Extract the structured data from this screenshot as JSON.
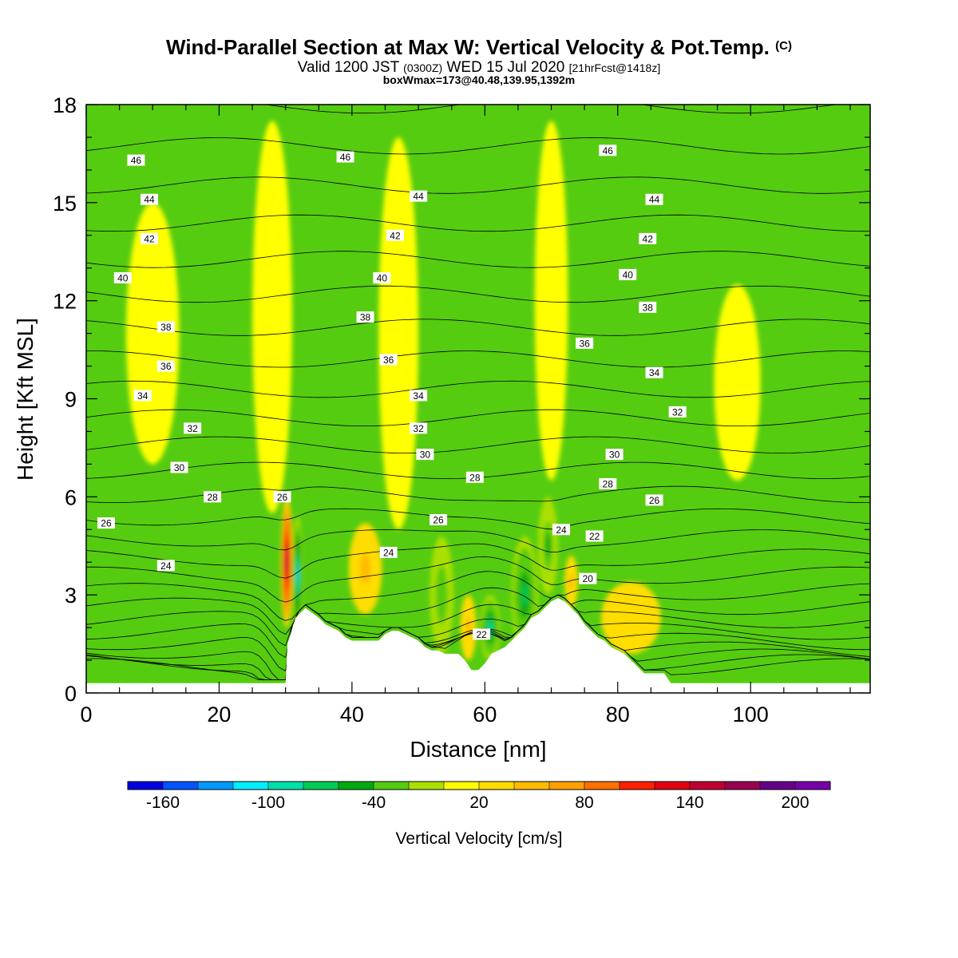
{
  "title": {
    "main": "Wind-Parallel Section at Max W: Vertical Velocity & Pot.Temp.",
    "mark": "(C)",
    "valid": "Valid 1200 JST",
    "valid_z": "(0300Z)",
    "date": "WED 15 Jul 2020",
    "fcst": "[21hrFcst@1418z]",
    "box": "boxWmax=173@40.48,139.95,1392m"
  },
  "chart_data": {
    "type": "heatmap",
    "xlabel": "Distance [nm]",
    "ylabel": "Height [Kft MSL]",
    "xlim": [
      0,
      118
    ],
    "ylim": [
      0,
      18
    ],
    "x_ticks": [
      0,
      20,
      40,
      60,
      80,
      100
    ],
    "y_ticks": [
      0,
      3,
      6,
      9,
      12,
      15,
      18
    ],
    "colorbar": {
      "label": "Vertical Velocity [cm/s]",
      "min": -180,
      "max": 220,
      "step": 20,
      "tick_labels": [
        -160,
        -100,
        -40,
        20,
        80,
        140,
        200
      ],
      "colors": [
        "#0000e0",
        "#0055ff",
        "#0099ff",
        "#00eeff",
        "#00e0aa",
        "#00cc55",
        "#00aa10",
        "#55cc10",
        "#aae000",
        "#ffff00",
        "#ffdd00",
        "#ffbb00",
        "#ffa000",
        "#ff7000",
        "#ff2000",
        "#e00010",
        "#c00030",
        "#990050",
        "#660088",
        "#7700aa"
      ]
    },
    "terrain_profile": {
      "x": [
        0,
        30,
        30.3,
        31.5,
        33,
        35,
        36,
        38,
        39,
        40,
        41,
        42,
        43,
        44,
        45,
        46,
        47,
        48,
        49,
        50,
        51,
        52,
        53,
        54,
        55,
        56,
        57,
        58,
        59,
        60,
        61,
        62,
        63,
        64,
        65,
        66,
        67,
        68,
        69,
        70,
        71,
        72,
        73,
        74,
        75,
        76,
        77,
        78,
        79,
        80,
        81,
        82,
        83,
        84,
        85,
        86,
        87,
        88,
        118
      ],
      "y": [
        0.3,
        0.3,
        1.5,
        2.3,
        2.6,
        2.3,
        2.1,
        1.9,
        1.7,
        1.6,
        1.6,
        1.6,
        1.6,
        1.6,
        1.8,
        1.9,
        1.9,
        1.8,
        1.7,
        1.6,
        1.4,
        1.3,
        1.3,
        1.2,
        1.2,
        1.2,
        1.0,
        0.7,
        0.7,
        0.9,
        1.2,
        1.3,
        1.4,
        1.6,
        1.8,
        2.0,
        2.3,
        2.4,
        2.6,
        2.8,
        2.9,
        2.8,
        2.6,
        2.4,
        2.1,
        1.9,
        1.7,
        1.6,
        1.4,
        1.3,
        1.2,
        1.0,
        0.8,
        0.6,
        0.6,
        0.6,
        0.6,
        0.3,
        0.3
      ]
    },
    "vertical_velocity_features": [
      {
        "x": 30.2,
        "y": 4.0,
        "half_width": 0.9,
        "half_height": 2.0,
        "value": 170
      },
      {
        "x": 31.8,
        "y": 3.6,
        "half_width": 0.8,
        "half_height": 1.8,
        "value": -110
      },
      {
        "x": 42.0,
        "y": 3.8,
        "half_width": 2.5,
        "half_height": 1.4,
        "value": 50
      },
      {
        "x": 53.5,
        "y": 3.0,
        "half_width": 1.8,
        "half_height": 1.8,
        "value": -40
      },
      {
        "x": 57.5,
        "y": 2.0,
        "half_width": 1.2,
        "half_height": 1.0,
        "value": 50
      },
      {
        "x": 60.8,
        "y": 2.0,
        "half_width": 1.5,
        "half_height": 1.0,
        "value": -90
      },
      {
        "x": 66.0,
        "y": 3.0,
        "half_width": 2.0,
        "half_height": 1.8,
        "value": -70
      },
      {
        "x": 69.5,
        "y": 4.5,
        "half_width": 1.5,
        "half_height": 1.5,
        "value": -50
      },
      {
        "x": 73.0,
        "y": 3.4,
        "half_width": 1.0,
        "half_height": 0.8,
        "value": 40
      },
      {
        "x": 82.0,
        "y": 2.3,
        "half_width": 4.5,
        "half_height": 1.1,
        "value": 35
      },
      {
        "x": 28.0,
        "y": 11.5,
        "half_width": 3.0,
        "half_height": 6.0,
        "value": 12
      },
      {
        "x": 47.0,
        "y": 11.0,
        "half_width": 3.0,
        "half_height": 6.0,
        "value": 12
      },
      {
        "x": 70.0,
        "y": 12.0,
        "half_width": 2.5,
        "half_height": 5.5,
        "value": 12
      },
      {
        "x": 98.0,
        "y": 9.5,
        "half_width": 3.5,
        "half_height": 3.0,
        "value": 12
      },
      {
        "x": 10.0,
        "y": 11.0,
        "half_width": 4.0,
        "half_height": 4.0,
        "value": 12
      }
    ],
    "theta_levels": [
      20,
      21,
      22,
      23,
      24,
      25,
      26,
      27,
      28,
      29,
      30,
      31,
      32,
      33,
      34,
      35,
      36,
      37,
      38,
      39,
      40,
      41,
      42,
      43,
      44,
      45,
      46,
      47
    ],
    "contour_labels": [
      {
        "text": "46",
        "x": 7.5,
        "y": 16.3
      },
      {
        "text": "44",
        "x": 9.5,
        "y": 15.1
      },
      {
        "text": "42",
        "x": 9.5,
        "y": 13.9
      },
      {
        "text": "40",
        "x": 5.5,
        "y": 12.7
      },
      {
        "text": "38",
        "x": 12.0,
        "y": 11.2
      },
      {
        "text": "36",
        "x": 12.0,
        "y": 10.0
      },
      {
        "text": "34",
        "x": 8.5,
        "y": 9.1
      },
      {
        "text": "32",
        "x": 16.0,
        "y": 8.1
      },
      {
        "text": "30",
        "x": 14.0,
        "y": 6.9
      },
      {
        "text": "28",
        "x": 19.0,
        "y": 6.0
      },
      {
        "text": "26",
        "x": 3.0,
        "y": 5.2
      },
      {
        "text": "24",
        "x": 12.0,
        "y": 3.9
      },
      {
        "text": "46",
        "x": 39.0,
        "y": 16.4
      },
      {
        "text": "44",
        "x": 50.0,
        "y": 15.2
      },
      {
        "text": "42",
        "x": 46.5,
        "y": 14.0
      },
      {
        "text": "40",
        "x": 44.5,
        "y": 12.7
      },
      {
        "text": "38",
        "x": 42.0,
        "y": 11.5
      },
      {
        "text": "36",
        "x": 45.5,
        "y": 10.2
      },
      {
        "text": "34",
        "x": 50.0,
        "y": 9.1
      },
      {
        "text": "32",
        "x": 50.0,
        "y": 8.1
      },
      {
        "text": "30",
        "x": 51.0,
        "y": 7.3
      },
      {
        "text": "28",
        "x": 58.5,
        "y": 6.6
      },
      {
        "text": "26",
        "x": 53.0,
        "y": 5.3
      },
      {
        "text": "26",
        "x": 29.5,
        "y": 6.0
      },
      {
        "text": "24",
        "x": 45.5,
        "y": 4.3
      },
      {
        "text": "24",
        "x": 71.5,
        "y": 5.0
      },
      {
        "text": "22",
        "x": 76.5,
        "y": 4.8
      },
      {
        "text": "20",
        "x": 75.5,
        "y": 3.5
      },
      {
        "text": "22",
        "x": 59.5,
        "y": 1.8
      },
      {
        "text": "46",
        "x": 78.5,
        "y": 16.6
      },
      {
        "text": "44",
        "x": 85.5,
        "y": 15.1
      },
      {
        "text": "42",
        "x": 84.5,
        "y": 13.9
      },
      {
        "text": "40",
        "x": 81.5,
        "y": 12.8
      },
      {
        "text": "38",
        "x": 84.5,
        "y": 11.8
      },
      {
        "text": "36",
        "x": 75.0,
        "y": 10.7
      },
      {
        "text": "34",
        "x": 85.5,
        "y": 9.8
      },
      {
        "text": "32",
        "x": 89.0,
        "y": 8.6
      },
      {
        "text": "30",
        "x": 79.5,
        "y": 7.3
      },
      {
        "text": "28",
        "x": 78.5,
        "y": 6.4
      },
      {
        "text": "26",
        "x": 85.5,
        "y": 5.9
      }
    ]
  }
}
